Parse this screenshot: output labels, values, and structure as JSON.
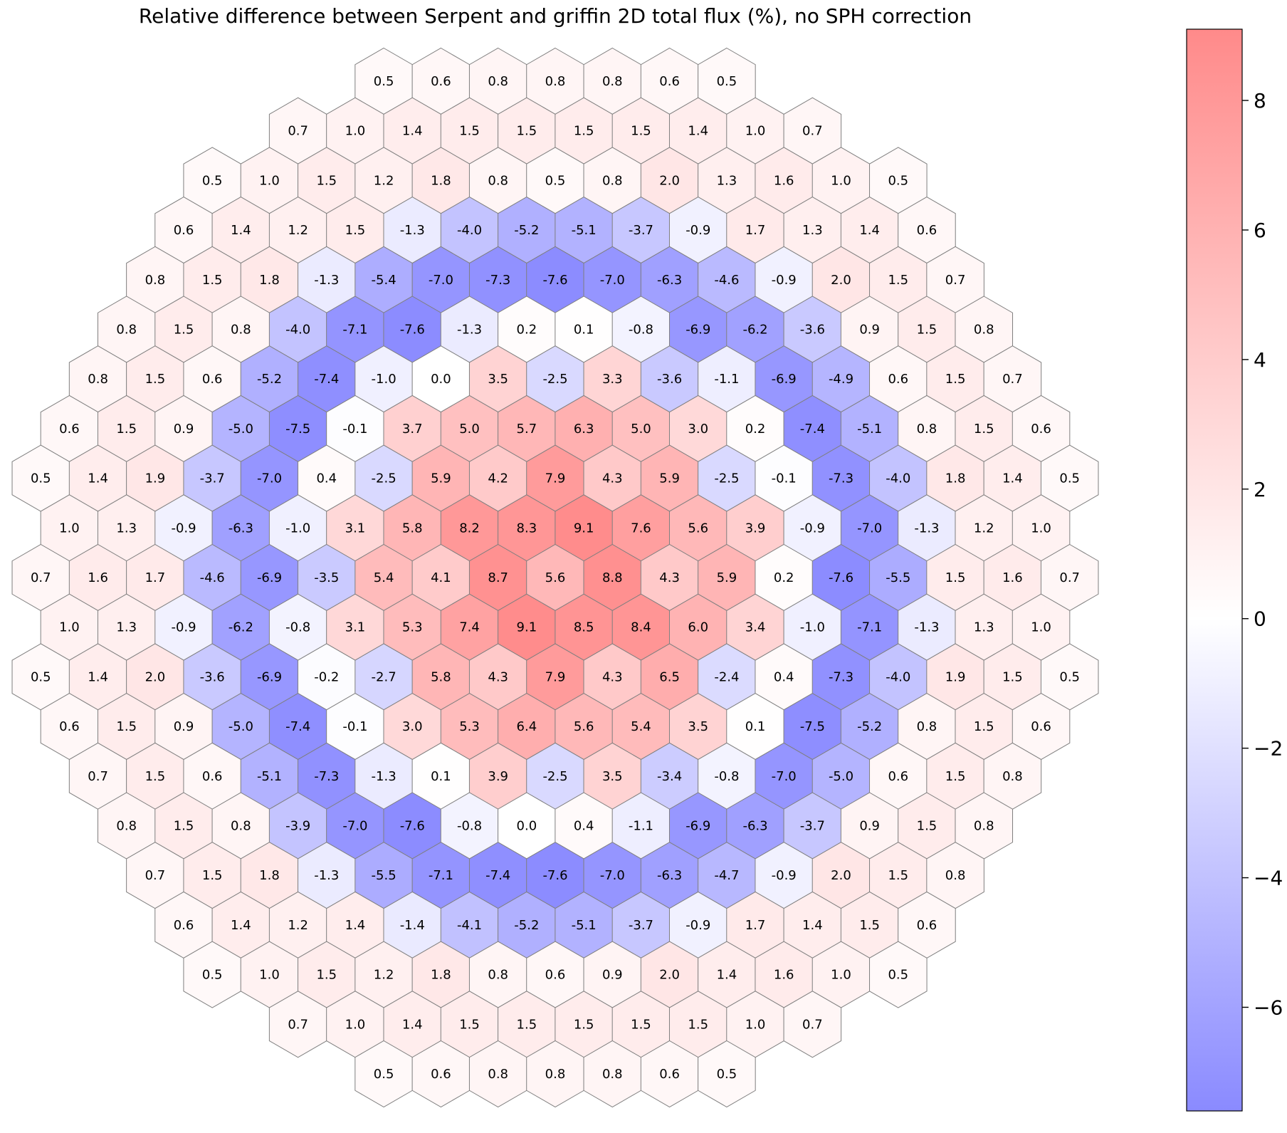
{
  "chart_data": {
    "type": "heatmap",
    "layout": "hexagonal assembly grid",
    "title": "Relative difference between Serpent and griffin 2D total flux (%), no SPH correction",
    "xlabel": "",
    "ylabel": "",
    "rows": [
      [
        0.5,
        0.6,
        0.8,
        0.8,
        0.8,
        0.6,
        0.5
      ],
      [
        0.7,
        1.0,
        1.4,
        1.5,
        1.5,
        1.5,
        1.5,
        1.4,
        1.0,
        0.7
      ],
      [
        0.5,
        1.0,
        1.5,
        1.2,
        1.8,
        0.8,
        0.5,
        0.8,
        2.0,
        1.3,
        1.6,
        1.0,
        0.5
      ],
      [
        0.6,
        1.4,
        1.2,
        1.5,
        -1.3,
        -4.0,
        -5.2,
        -5.1,
        -3.7,
        -0.9,
        1.7,
        1.3,
        1.4,
        0.6
      ],
      [
        0.8,
        1.5,
        1.8,
        -1.3,
        -5.4,
        -7.0,
        -7.3,
        -7.6,
        -7.0,
        -6.3,
        -4.6,
        -0.9,
        2.0,
        1.5,
        0.7
      ],
      [
        0.8,
        1.5,
        0.8,
        -4.0,
        -7.1,
        -7.6,
        -1.3,
        0.2,
        0.1,
        -0.8,
        -6.9,
        -6.2,
        -3.6,
        0.9,
        1.5,
        0.8
      ],
      [
        0.8,
        1.5,
        0.6,
        -5.2,
        -7.4,
        -1.0,
        0.0,
        3.5,
        -2.5,
        3.3,
        -3.6,
        -1.1,
        -6.9,
        -4.9,
        0.6,
        1.5,
        0.7
      ],
      [
        0.6,
        1.5,
        0.9,
        -5.0,
        -7.5,
        -0.1,
        3.7,
        5.0,
        5.7,
        6.3,
        5.0,
        3.0,
        0.2,
        -7.4,
        -5.1,
        0.8,
        1.5,
        0.6
      ],
      [
        0.5,
        1.4,
        1.9,
        -3.7,
        -7.0,
        0.4,
        -2.5,
        5.9,
        4.2,
        7.9,
        4.3,
        5.9,
        -2.5,
        -0.1,
        -7.3,
        -4.0,
        1.8,
        1.4,
        0.5
      ],
      [
        1.0,
        1.3,
        -0.9,
        -6.3,
        -1.0,
        3.1,
        5.8,
        8.2,
        8.3,
        9.1,
        7.6,
        5.6,
        3.9,
        -0.9,
        -7.0,
        -1.3,
        1.2,
        1.0
      ],
      [
        0.7,
        1.6,
        1.7,
        -4.6,
        -6.9,
        -3.5,
        5.4,
        4.1,
        8.7,
        5.6,
        8.8,
        4.3,
        5.9,
        0.2,
        -7.6,
        -5.5,
        1.5,
        1.6,
        0.7
      ],
      [
        1.0,
        1.3,
        -0.9,
        -6.2,
        -0.8,
        3.1,
        5.3,
        7.4,
        9.1,
        8.5,
        8.4,
        6.0,
        3.4,
        -1.0,
        -7.1,
        -1.3,
        1.3,
        1.0
      ],
      [
        0.5,
        1.4,
        2.0,
        -3.6,
        -6.9,
        -0.2,
        -2.7,
        5.8,
        4.3,
        7.9,
        4.3,
        6.5,
        -2.4,
        0.4,
        -7.3,
        -4.0,
        1.9,
        1.5,
        0.5
      ],
      [
        0.6,
        1.5,
        0.9,
        -5.0,
        -7.4,
        -0.1,
        3.0,
        5.3,
        6.4,
        5.6,
        5.4,
        3.5,
        0.1,
        -7.5,
        -5.2,
        0.8,
        1.5,
        0.6
      ],
      [
        0.7,
        1.5,
        0.6,
        -5.1,
        -7.3,
        -1.3,
        0.1,
        3.9,
        -2.5,
        3.5,
        -3.4,
        -0.8,
        -7.0,
        -5.0,
        0.6,
        1.5,
        0.8
      ],
      [
        0.8,
        1.5,
        0.8,
        -3.9,
        -7.0,
        -7.6,
        -0.8,
        0.0,
        0.4,
        -1.1,
        -6.9,
        -6.3,
        -3.7,
        0.9,
        1.5,
        0.8
      ],
      [
        0.7,
        1.5,
        1.8,
        -1.3,
        -5.5,
        -7.1,
        -7.4,
        -7.6,
        -7.0,
        -6.3,
        -4.7,
        -0.9,
        2.0,
        1.5,
        0.8
      ],
      [
        0.6,
        1.4,
        1.2,
        1.4,
        -1.4,
        -4.1,
        -5.2,
        -5.1,
        -3.7,
        -0.9,
        1.7,
        1.4,
        1.5,
        0.6
      ],
      [
        0.5,
        1.0,
        1.5,
        1.2,
        1.8,
        0.8,
        0.6,
        0.9,
        2.0,
        1.4,
        1.6,
        1.0,
        0.5
      ],
      [
        0.7,
        1.0,
        1.4,
        1.5,
        1.5,
        1.5,
        1.5,
        1.5,
        1.0,
        0.7
      ],
      [
        0.5,
        0.6,
        0.8,
        0.8,
        0.8,
        0.6,
        0.5
      ]
    ],
    "colorbar": {
      "colormap": "bwr (transparent)",
      "min": -7.6,
      "max": 9.1,
      "ticks": [
        -6,
        -4,
        -2,
        0,
        2,
        4,
        6,
        8
      ],
      "tick_labels": [
        "−6",
        "−4",
        "−2",
        "0",
        "2",
        "4",
        "6",
        "8"
      ]
    },
    "colors": {
      "negative_max": "#0000ff",
      "positive_max": "#ff0000",
      "center": "#ffffff",
      "edge": "#7f7f7f"
    },
    "grid": false,
    "legend": "colorbar right"
  }
}
